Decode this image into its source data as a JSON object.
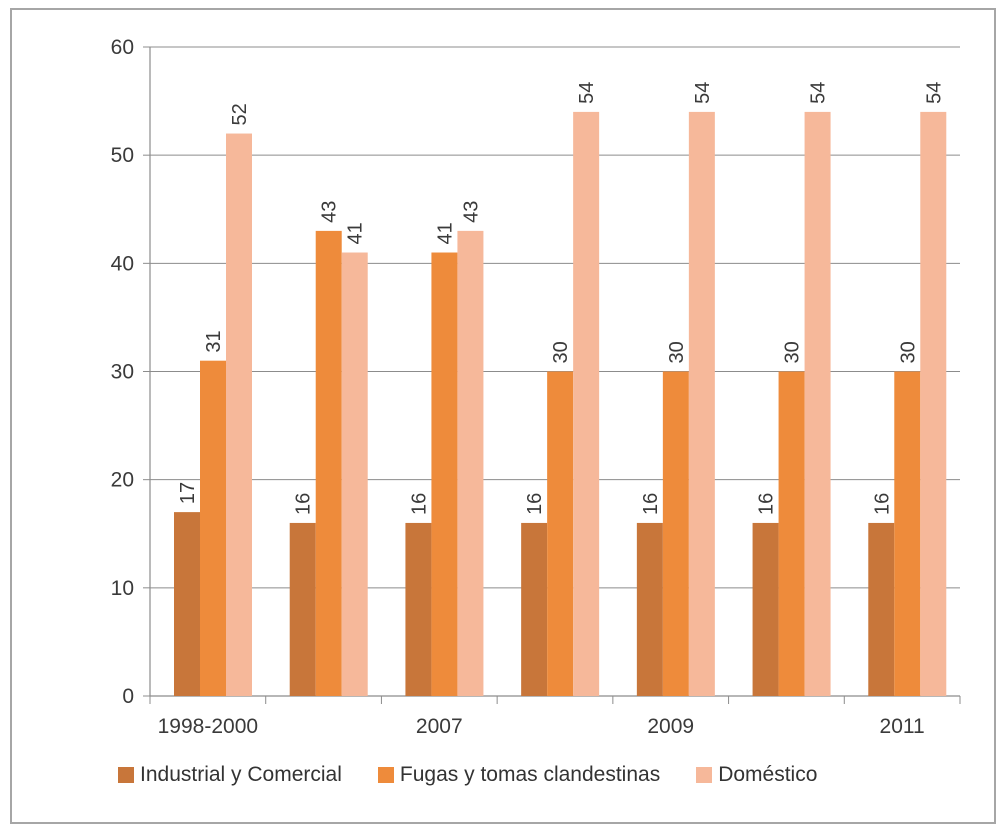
{
  "chart_data": {
    "type": "bar",
    "categories": [
      "1998-2000",
      "",
      "2007",
      "",
      "2009",
      "",
      "2011"
    ],
    "series": [
      {
        "name": "Industrial y Comercial",
        "color": "#c8763a",
        "values": [
          17,
          16,
          16,
          16,
          16,
          16,
          16
        ]
      },
      {
        "name": "Fugas y tomas clandestinas",
        "color": "#ee8b3b",
        "values": [
          31,
          43,
          41,
          30,
          30,
          30,
          30
        ]
      },
      {
        "name": "Doméstico",
        "color": "#f6b89a",
        "values": [
          52,
          41,
          43,
          54,
          54,
          54,
          54
        ]
      }
    ],
    "y_ticks": [
      "0",
      "10",
      "20",
      "30",
      "40",
      "50",
      "60"
    ],
    "ylim": [
      0,
      60
    ],
    "grid": true,
    "data_labels": true,
    "legend_position": "bottom"
  }
}
